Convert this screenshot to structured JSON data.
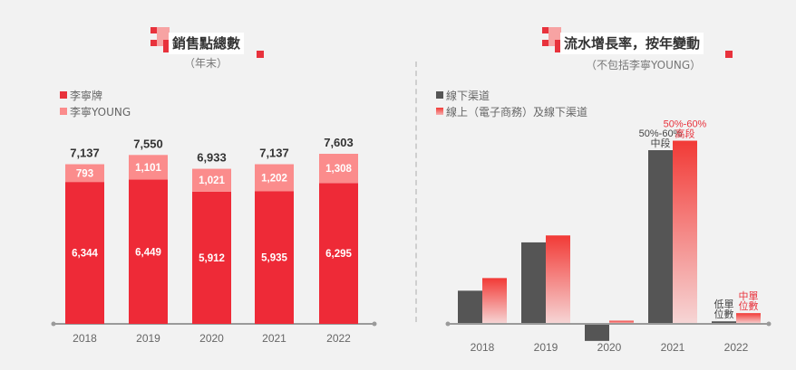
{
  "colors": {
    "li_ning": "#ee2a37",
    "li_ning_young": "#fb8c8c",
    "offline": "#555555",
    "online_top": "#f23a36",
    "online_bottom": "#f6d3d3",
    "axis": "#9a9a9a",
    "annotation_red": "#e8323c",
    "annotation_dark": "#444444"
  },
  "chart_data": [
    {
      "type": "bar",
      "stacked": true,
      "title": "銷售點總數",
      "subtitle": "（年末）",
      "categories": [
        "2018",
        "2019",
        "2020",
        "2021",
        "2022"
      ],
      "series": [
        {
          "name": "李寧牌",
          "values": [
            6344,
            6449,
            5912,
            5935,
            6295
          ],
          "labels": [
            "6,344",
            "6,449",
            "5,912",
            "5,935",
            "6,295"
          ]
        },
        {
          "name": "李寧YOUNG",
          "values": [
            793,
            1101,
            1021,
            1202,
            1308
          ],
          "labels": [
            "793",
            "1,101",
            "1,021",
            "1,202",
            "1,308"
          ]
        }
      ],
      "totals": [
        7137,
        7550,
        6933,
        7137,
        7603
      ],
      "total_labels": [
        "7,137",
        "7,550",
        "6,933",
        "7,137",
        "7,603"
      ],
      "legend": [
        "李寧牌",
        "李寧YOUNG"
      ],
      "legend_position": "top-left",
      "grid": false,
      "ylim": [
        0,
        7700
      ]
    },
    {
      "type": "bar",
      "title": "流水增長率，按年變動",
      "subtitle": "（不包括李寧YOUNG）",
      "categories": [
        "2018",
        "2019",
        "2020",
        "2021",
        "2022"
      ],
      "series": [
        {
          "name": "線下渠道",
          "values": [
            10.5,
            25.8,
            -5.4,
            55,
            0.8
          ]
        },
        {
          "name": "線上（電子商務）及線下渠道",
          "values": [
            14.5,
            28,
            1,
            58,
            3.4
          ]
        }
      ],
      "annotations": [
        {
          "category": "2021",
          "series": "線下渠道",
          "text_lines": [
            "50%-60%",
            "中段"
          ]
        },
        {
          "category": "2021",
          "series": "線上（電子商務）及線下渠道",
          "text_lines": [
            "50%-60%",
            "高段"
          ]
        },
        {
          "category": "2022",
          "series": "線下渠道",
          "text_lines": [
            "低單",
            "位數"
          ]
        },
        {
          "category": "2022",
          "series": "線上（電子商務）及線下渠道",
          "text_lines": [
            "中單",
            "位數"
          ]
        }
      ],
      "legend": [
        "線下渠道",
        "線上（電子商務）及線下渠道"
      ],
      "legend_position": "top-left",
      "grid": false,
      "ylabel": "",
      "ylim": [
        -6,
        60
      ],
      "note": "values are approximate; only range labels shown"
    }
  ]
}
